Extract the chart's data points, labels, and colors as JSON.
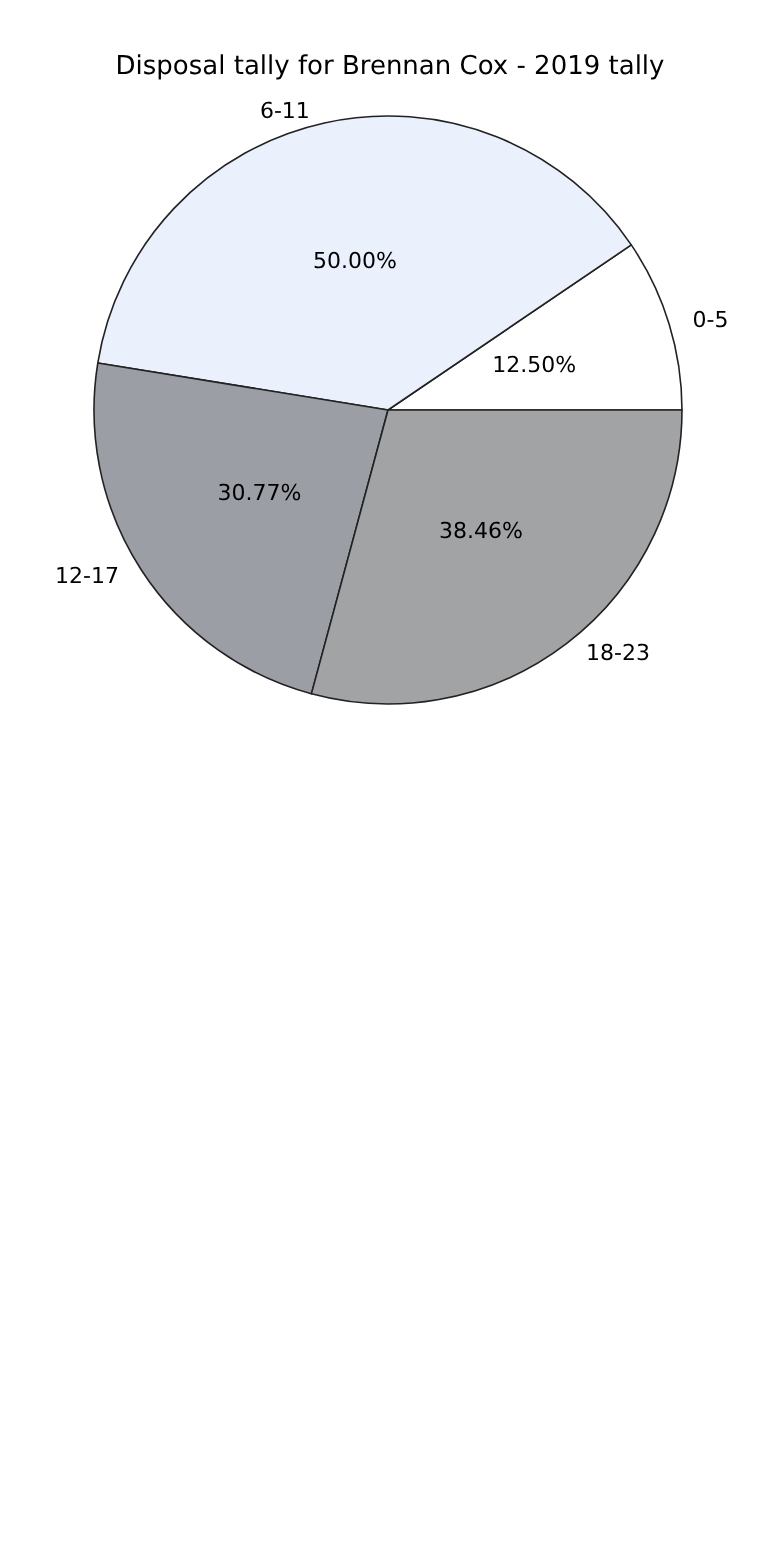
{
  "chart_data": {
    "type": "pie",
    "title": "Disposal tally for Brennan Cox - 2019 tally",
    "categories": [
      "0-5",
      "6-11",
      "12-17",
      "18-23"
    ],
    "values": [
      12.5,
      50,
      30.77,
      38.46
    ],
    "value_labels": [
      "12.50%",
      "50.00%",
      "30.77%",
      "38.46%"
    ],
    "colors": [
      "#ffffff",
      "#eaf1fd",
      "#9b9ea4",
      "#a2a3a5"
    ],
    "legend": false
  }
}
